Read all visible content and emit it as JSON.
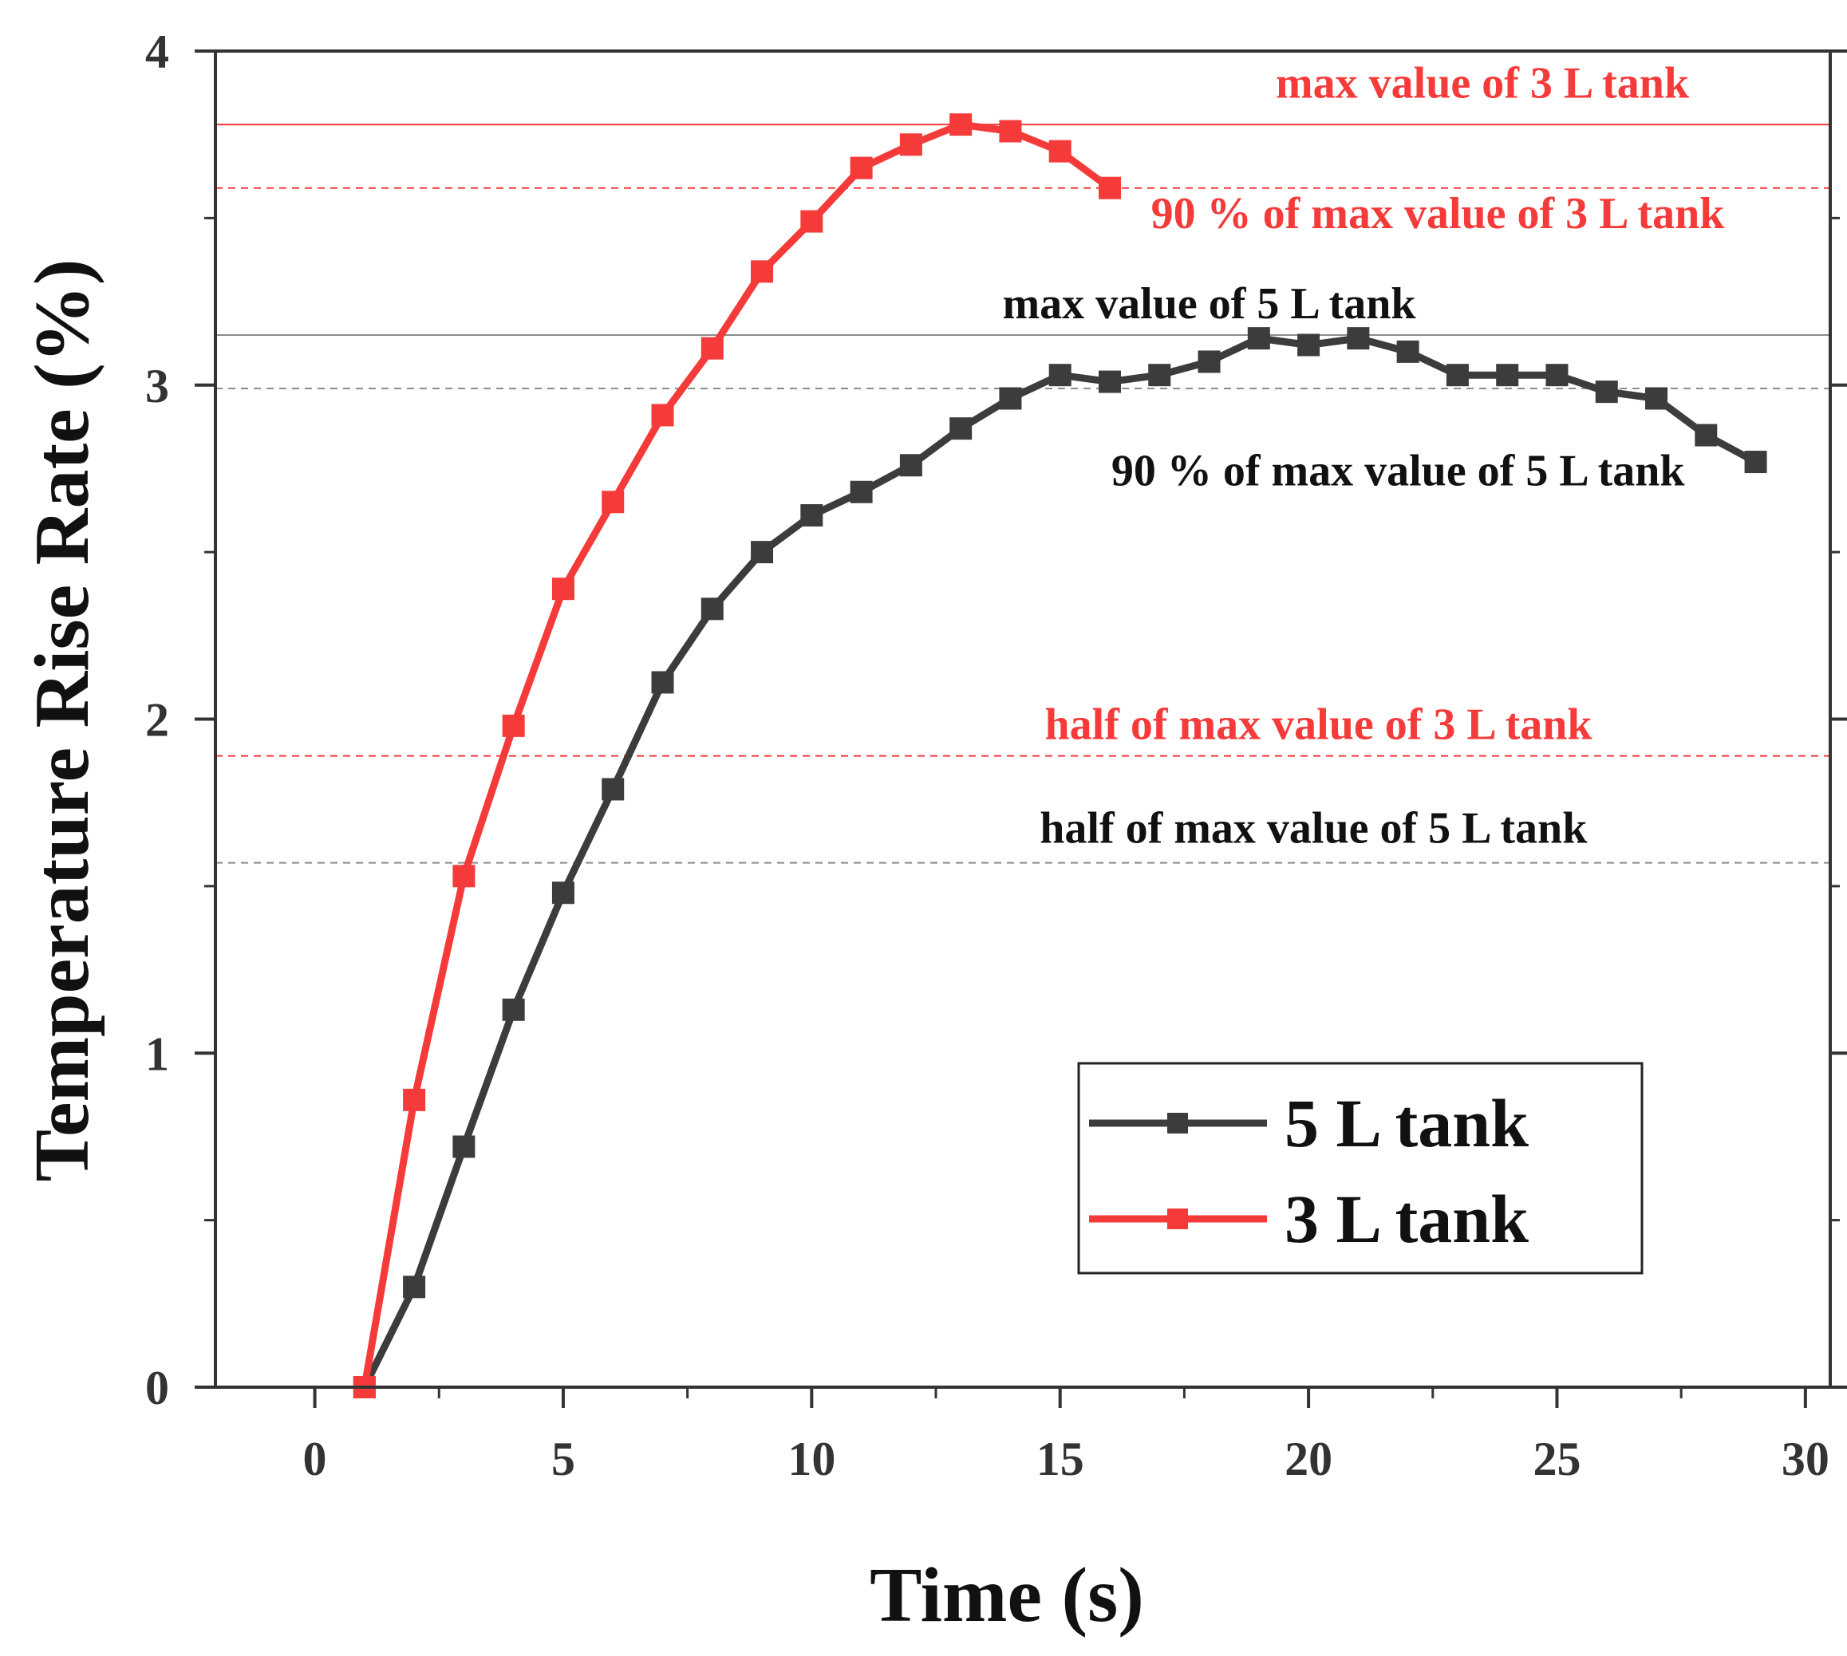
{
  "colors": {
    "red": "#f53a3a",
    "black_series": "#3c3c3c",
    "gray_line": "#8c8c8c",
    "axis": "#333333"
  },
  "chart_data": {
    "type": "line",
    "xlabel": "Time (s)",
    "ylabel": "Temperature Rise Rate (%)",
    "xlim": [
      -2,
      30.5
    ],
    "ylim": [
      0,
      4
    ],
    "xticks": [
      0,
      5,
      10,
      15,
      20,
      25,
      30
    ],
    "xtick_labels": [
      "0",
      "5",
      "10",
      "15",
      "20",
      "25",
      "30"
    ],
    "yticks": [
      0,
      1,
      2,
      3,
      4
    ],
    "ytick_labels": [
      "0",
      "1",
      "2",
      "3",
      "4"
    ],
    "series": [
      {
        "name": "5 L tank",
        "color": "#3c3c3c",
        "x": [
          1,
          2,
          3,
          4,
          5,
          6,
          7,
          8,
          9,
          10,
          11,
          12,
          13,
          14,
          15,
          16,
          17,
          18,
          19,
          20,
          21,
          22,
          23,
          24,
          25,
          26,
          27,
          28,
          29
        ],
        "y": [
          0.0,
          0.3,
          0.72,
          1.13,
          1.48,
          1.79,
          2.11,
          2.33,
          2.5,
          2.61,
          2.68,
          2.76,
          2.87,
          2.96,
          3.03,
          3.01,
          3.03,
          3.07,
          3.14,
          3.12,
          3.14,
          3.1,
          3.03,
          3.03,
          3.03,
          2.98,
          2.96,
          2.85,
          2.77
        ]
      },
      {
        "name": "3 L tank",
        "color": "#f53a3a",
        "x": [
          1,
          2,
          3,
          4,
          5,
          6,
          7,
          8,
          9,
          10,
          11,
          12,
          13,
          14,
          15,
          16
        ],
        "y": [
          0.0,
          0.86,
          1.53,
          1.98,
          2.39,
          2.65,
          2.91,
          3.11,
          3.34,
          3.49,
          3.65,
          3.72,
          3.78,
          3.76,
          3.7,
          3.59
        ]
      }
    ],
    "reference_lines": [
      {
        "name": "max value of 3 L tank",
        "y": 3.78,
        "color": "#f53a3a",
        "style": "solid"
      },
      {
        "name": "90 % of max value of 3 L tank",
        "y": 3.59,
        "color": "#f53a3a",
        "style": "dashed"
      },
      {
        "name": "max value of 5 L tank",
        "y": 3.15,
        "color": "#8c8c8c",
        "style": "solid"
      },
      {
        "name": "90 % of max value of 5 L tank",
        "y": 2.99,
        "color": "#8c8c8c",
        "style": "dashed"
      },
      {
        "name": "half of max value of 3 L tank",
        "y": 1.89,
        "color": "#f53a3a",
        "style": "dashed"
      },
      {
        "name": "half of max value of 5 L tank",
        "y": 1.57,
        "color": "#8c8c8c",
        "style": "dashed"
      }
    ],
    "annotations": [
      {
        "text": "max value of 3 L tank",
        "color": "#f53a3a",
        "at_x": 23.5,
        "at_y": 3.86
      },
      {
        "text": "90 % of max value of 3 L tank",
        "color": "#f53a3a",
        "at_x": 22.6,
        "at_y": 3.47
      },
      {
        "text": "max value of 5 L tank",
        "color": "#111111",
        "at_x": 18.0,
        "at_y": 3.2
      },
      {
        "text": "90 % of max value of 5 L tank",
        "color": "#111111",
        "at_x": 21.8,
        "at_y": 2.7
      },
      {
        "text": "half of max value of 3 L tank",
        "color": "#f53a3a",
        "at_x": 20.2,
        "at_y": 1.94
      },
      {
        "text": "half of max value of 5 L tank",
        "color": "#111111",
        "at_x": 20.1,
        "at_y": 1.63
      }
    ],
    "legend": {
      "position": "bottom-right",
      "entries": [
        "5 L tank",
        "3 L tank"
      ]
    }
  }
}
